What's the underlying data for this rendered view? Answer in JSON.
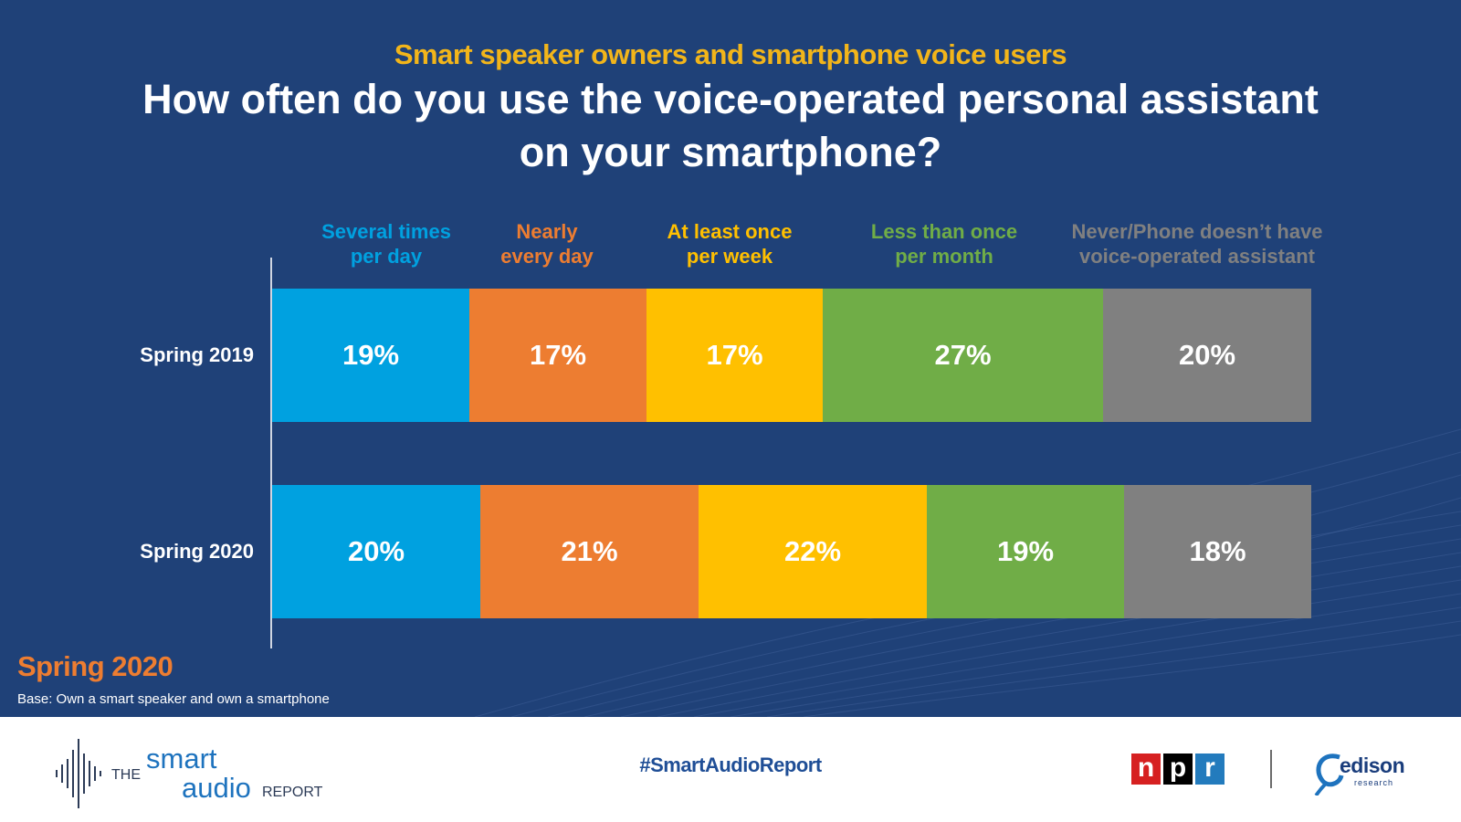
{
  "subtitle": "Smart speaker owners and smartphone voice users",
  "title": "How often do you use the voice-operated personal assistant on your smartphone?",
  "season_label": "Spring 2020",
  "base_note": "Base: Own a smart speaker and own a smartphone",
  "footer": {
    "hashtag": "#SmartAudioReport",
    "logo_left": {
      "the": "THE",
      "smart": "smart",
      "audio": "audio",
      "report": "REPORT"
    },
    "npr": [
      "n",
      "p",
      "r"
    ],
    "edison": {
      "word": "edison",
      "sub": "research"
    }
  },
  "colors": {
    "background": "#1f4178",
    "subtitle": "#f2b51a",
    "season": "#ed7d31",
    "npr": [
      "#d62021",
      "#000000",
      "#237bbd"
    ]
  },
  "chart_data": {
    "type": "bar",
    "orientation": "horizontal",
    "stacked": true,
    "unit": "%",
    "categories": [
      "Spring 2019",
      "Spring 2020"
    ],
    "series": [
      {
        "name": "Several times\nper day",
        "color": "#00a1e0",
        "values": [
          19,
          20
        ]
      },
      {
        "name": "Nearly\nevery day",
        "color": "#ed7d31",
        "values": [
          17,
          21
        ]
      },
      {
        "name": "At least once\nper week",
        "color": "#ffc000",
        "values": [
          17,
          22
        ]
      },
      {
        "name": "Less than once\nper month",
        "color": "#70ad47",
        "values": [
          27,
          19
        ]
      },
      {
        "name": "Never/Phone doesn’t have\nvoice-operated assistant",
        "color": "#808080",
        "values": [
          20,
          18
        ]
      }
    ],
    "legend": "top",
    "grid": false
  }
}
